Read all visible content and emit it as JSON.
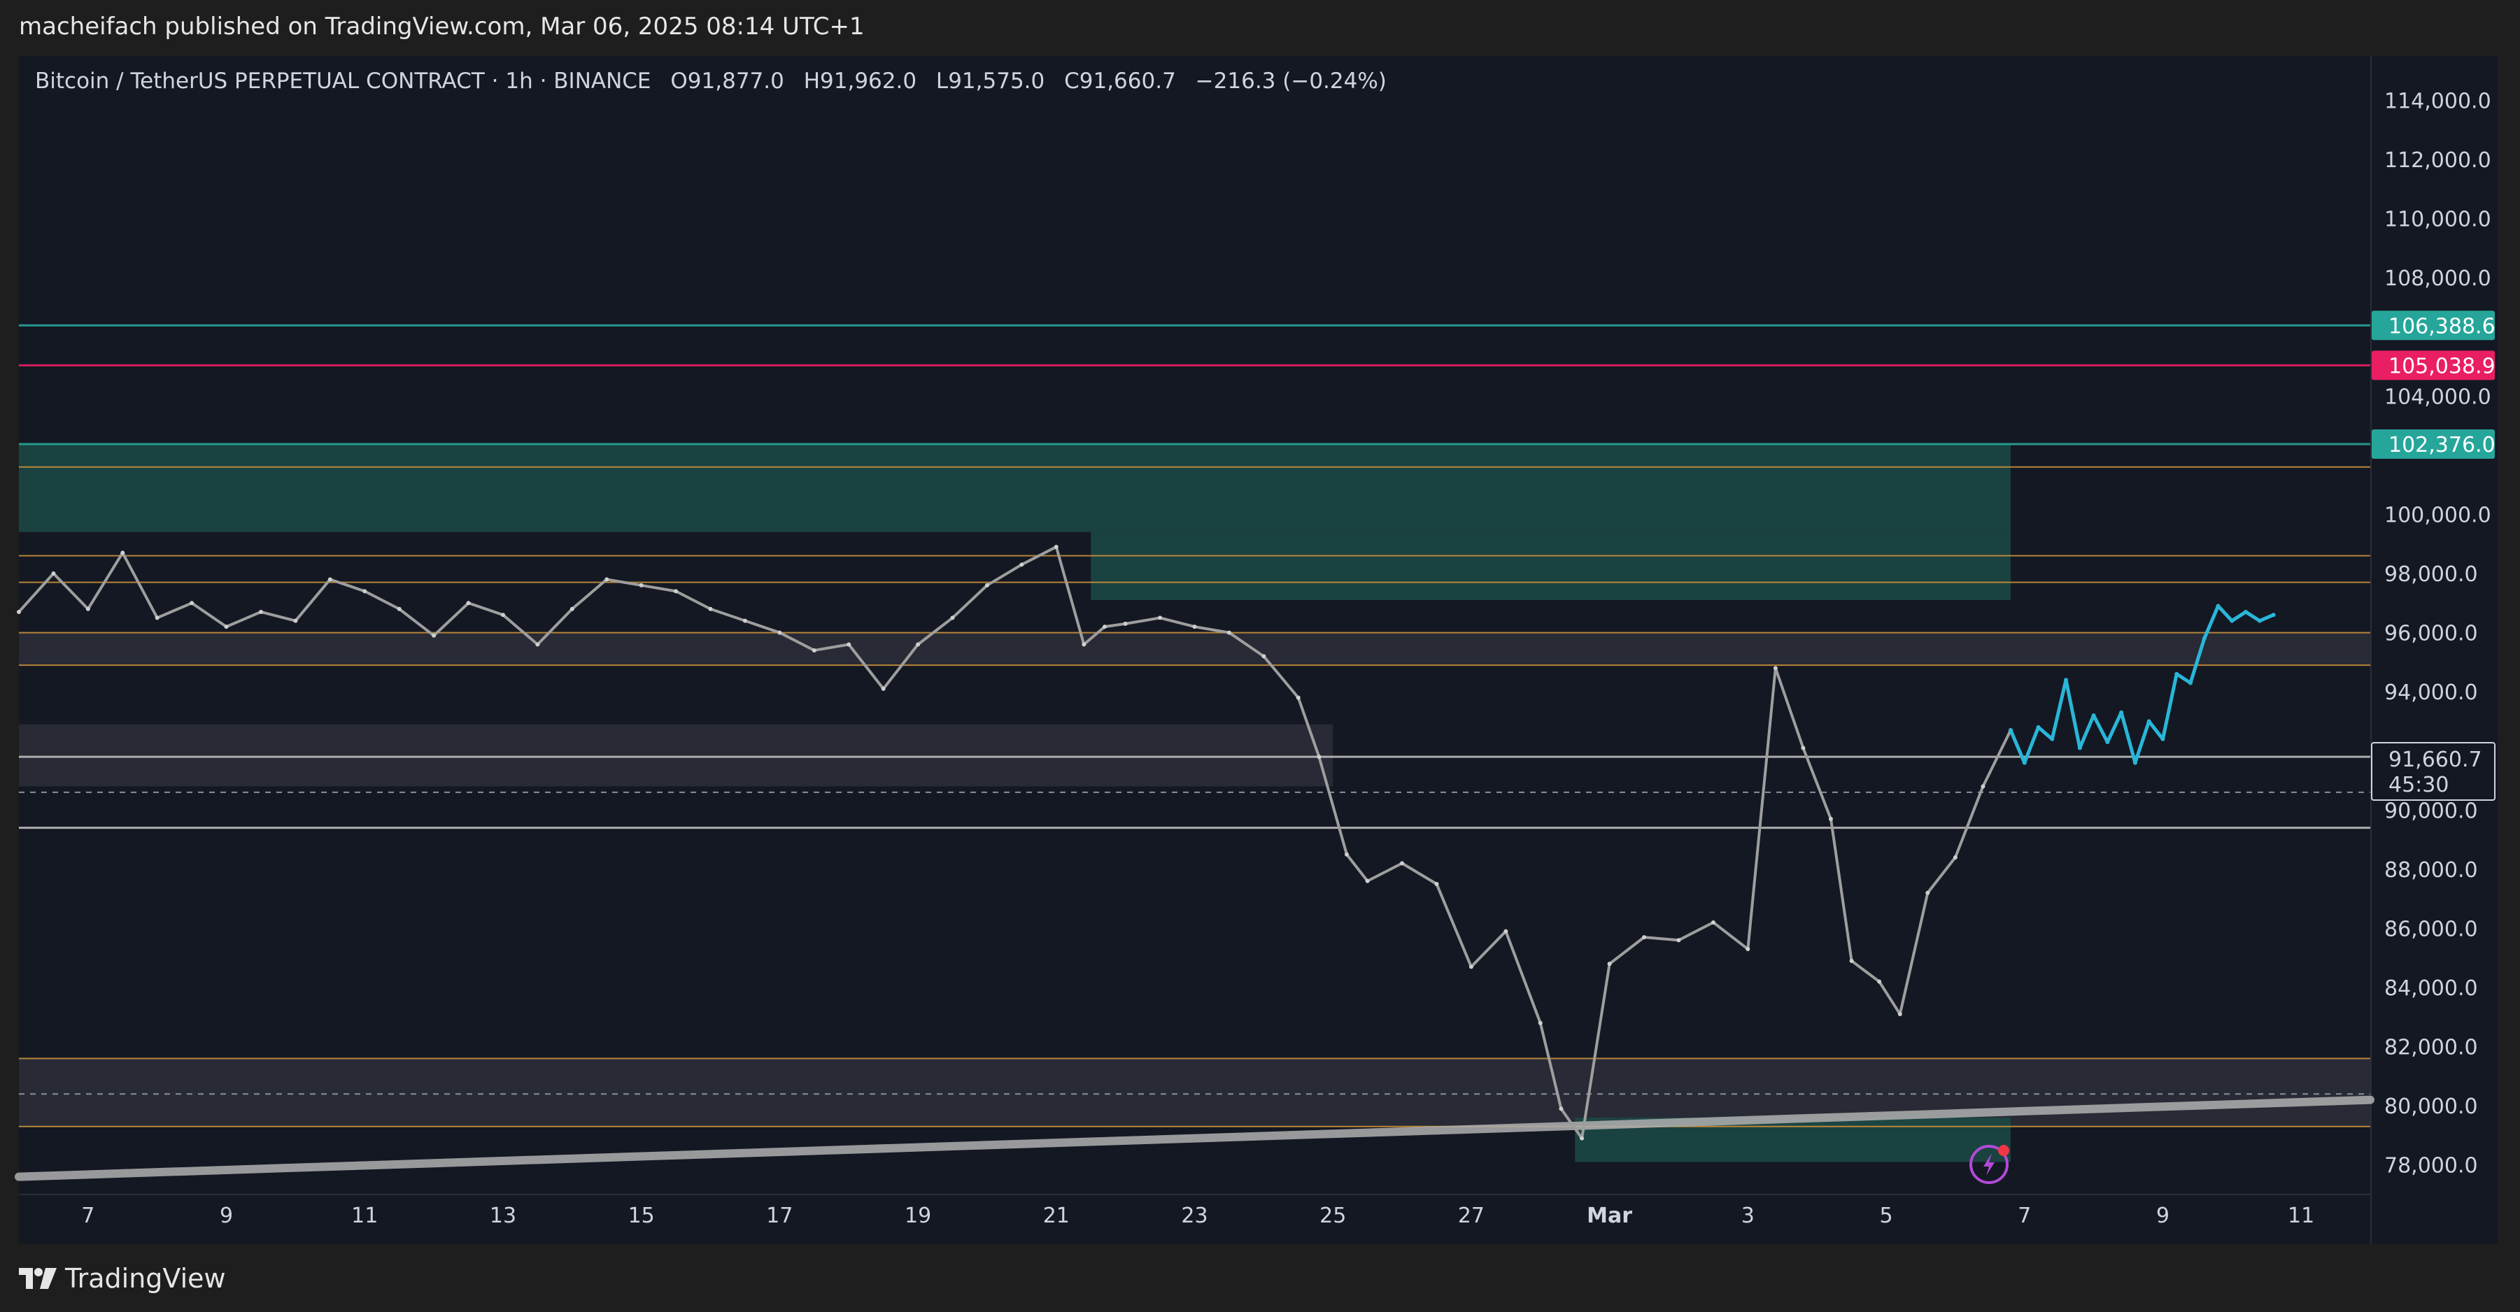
{
  "header": {
    "publisher_line": "macheifach published on TradingView.com, Mar 06, 2025 08:14 UTC+1"
  },
  "legend": {
    "symbol": "Bitcoin / TetherUS PERPETUAL CONTRACT · 1h · BINANCE",
    "open": "O91,877.0",
    "high": "H91,962.0",
    "low": "L91,575.0",
    "close": "C91,660.7",
    "change": "−216.3 (−0.24%)"
  },
  "footer": {
    "brand": "TradingView"
  },
  "colors": {
    "background": "#141823",
    "teal_zone": "#1b4a45",
    "teal_line": "#26a69a",
    "magenta_line": "#e91e63",
    "orange_line": "#c8903a",
    "projection": "#29b6d8",
    "candle": "#9e9e9e",
    "trendline": "#b0b0b0"
  },
  "chart_data": {
    "type": "line",
    "title": "Bitcoin / TetherUS PERPETUAL CONTRACT · 1h · BINANCE",
    "ylim": [
      77000,
      115500
    ],
    "xlim": [
      "Feb 6",
      "Mar 12"
    ],
    "y_ticks": [
      78000,
      80000,
      82000,
      84000,
      86000,
      88000,
      90000,
      94000,
      96000,
      98000,
      100000,
      104000,
      108000,
      110000,
      112000,
      114000
    ],
    "y_tick_labels": [
      "78,000.0",
      "80,000.0",
      "82,000.0",
      "84,000.0",
      "86,000.0",
      "88,000.0",
      "90,000.0",
      "94,000.0",
      "96,000.0",
      "98,000.0",
      "100,000.0",
      "104,000.0",
      "108,000.0",
      "110,000.0",
      "112,000.0",
      "114,000.0"
    ],
    "x_ticks": [
      {
        "day": 7,
        "label": "7"
      },
      {
        "day": 9,
        "label": "9"
      },
      {
        "day": 11,
        "label": "11"
      },
      {
        "day": 13,
        "label": "13"
      },
      {
        "day": 15,
        "label": "15"
      },
      {
        "day": 17,
        "label": "17"
      },
      {
        "day": 19,
        "label": "19"
      },
      {
        "day": 21,
        "label": "21"
      },
      {
        "day": 23,
        "label": "23"
      },
      {
        "day": 25,
        "label": "25"
      },
      {
        "day": 27,
        "label": "27"
      },
      {
        "day": 29,
        "label": "Mar"
      },
      {
        "day": 31,
        "label": "3"
      },
      {
        "day": 33,
        "label": "5"
      },
      {
        "day": 35,
        "label": "7"
      },
      {
        "day": 37,
        "label": "9"
      },
      {
        "day": 39,
        "label": "11"
      }
    ],
    "price_badges": [
      {
        "label": "106,388.6",
        "value": 106388.6,
        "color": "#26a69a"
      },
      {
        "label": "105,038.9",
        "value": 105038.9,
        "color": "#e91e63"
      },
      {
        "label": "102,376.0",
        "value": 102376.0,
        "color": "#26a69a"
      }
    ],
    "last_price": {
      "label": "91,660.7",
      "countdown": "45:30",
      "value": 91660.7
    },
    "horizontal_lines": [
      {
        "value": 106388.6,
        "color": "#26a69a"
      },
      {
        "value": 105038.9,
        "color": "#e91e63"
      },
      {
        "value": 102376.0,
        "color": "#26a69a"
      },
      {
        "value": 101600,
        "color": "#c8903a"
      },
      {
        "value": 98600,
        "color": "#c8903a"
      },
      {
        "value": 97700,
        "color": "#c8903a"
      },
      {
        "value": 96000,
        "color": "#c8903a"
      },
      {
        "value": 94900,
        "color": "#c8903a"
      },
      {
        "value": 91800,
        "color": "#bdbdbd"
      },
      {
        "value": 89400,
        "color": "#bdbdbd"
      },
      {
        "value": 81600,
        "color": "#c8903a"
      },
      {
        "value": 79300,
        "color": "#c8903a"
      }
    ],
    "zones": [
      {
        "from_day": 6,
        "to_day": 34.8,
        "low": 99400,
        "high": 102376,
        "color": "#1b4a45"
      },
      {
        "from_day": 21.5,
        "to_day": 34.8,
        "low": 97100,
        "high": 99400,
        "color": "#1b4a45"
      },
      {
        "from_day": 6,
        "to_day": 40,
        "low": 94900,
        "high": 96000,
        "color": "#2b2e38"
      },
      {
        "from_day": 6,
        "to_day": 25,
        "low": 90800,
        "high": 92900,
        "color": "#2b2e38"
      },
      {
        "from_day": 6,
        "to_day": 40,
        "low": 79300,
        "high": 81600,
        "color": "#2b2e38"
      },
      {
        "from_day": 28.5,
        "to_day": 34.8,
        "low": 78100,
        "high": 79600,
        "color": "#1b4a45"
      }
    ],
    "series": [
      {
        "name": "",
        "x": [
          6,
          6.5,
          7,
          7.5,
          8,
          8.5,
          9,
          9.5,
          10,
          10.5,
          11,
          11.5,
          12,
          12.5,
          13,
          13.5,
          14,
          14.5,
          15,
          15.5,
          16,
          16.5,
          17,
          17.5,
          18,
          18.5,
          19,
          19.5,
          20,
          20.5,
          21,
          21.4,
          21.7,
          22,
          22.5,
          23,
          23.5,
          24,
          24.5,
          24.8,
          25.2,
          25.5,
          26,
          26.5,
          27,
          27.5,
          28,
          28.3,
          28.6,
          29,
          29.5,
          30,
          30.5,
          31,
          31.4,
          31.8,
          32.2,
          32.5,
          32.9,
          33.2,
          33.6,
          34,
          34.4,
          34.8
        ],
        "values": [
          96700,
          98000,
          96800,
          98700,
          96500,
          97000,
          96200,
          96700,
          96400,
          97800,
          97400,
          96800,
          95900,
          97000,
          96600,
          95600,
          96800,
          97800,
          97600,
          97400,
          96800,
          96400,
          96000,
          95400,
          95600,
          94100,
          95600,
          96500,
          97600,
          98300,
          98900,
          95600,
          96200,
          96300,
          96500,
          96200,
          96000,
          95200,
          93800,
          91800,
          88500,
          87600,
          88200,
          87500,
          84700,
          85900,
          82800,
          79900,
          78900,
          84800,
          85700,
          85600,
          86200,
          85300,
          94800,
          92100,
          89700,
          84900,
          84200,
          83100,
          87200,
          88400,
          90800,
          92700
        ]
      },
      {
        "name": "",
        "x": [
          34.8,
          35,
          35.2,
          35.4,
          35.6,
          35.8,
          36,
          36.2,
          36.4,
          36.6,
          36.8,
          37,
          37.2,
          37.4,
          37.6,
          37.8,
          38,
          38.2,
          38.4,
          38.6
        ],
        "values": [
          92700,
          91600,
          92800,
          92400,
          94400,
          92100,
          93200,
          92300,
          93300,
          91600,
          93000,
          92400,
          94600,
          94300,
          95800,
          96900,
          96400,
          96700,
          96400,
          96600
        ]
      }
    ],
    "trendline": {
      "x": [
        6,
        40
      ],
      "values": [
        77600,
        80200
      ]
    }
  }
}
